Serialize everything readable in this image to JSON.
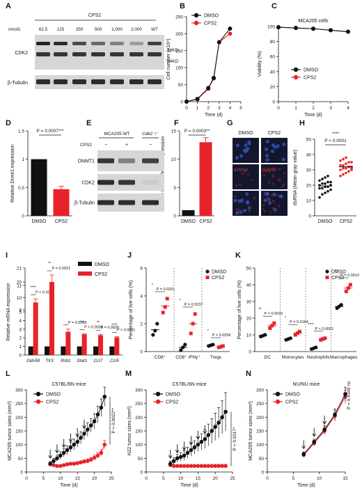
{
  "colors": {
    "dmso": "#111111",
    "cps2": "#e8222a",
    "blot_bg": "#d6d6d6",
    "band": "#1a1a1a",
    "micro_bg": "#12172e",
    "nuclei": "#3550b0",
    "dsrna": "#7a1a20"
  },
  "panel_letters": [
    "A",
    "B",
    "C",
    "D",
    "E",
    "F",
    "G",
    "H",
    "I",
    "J",
    "K",
    "L",
    "M",
    "N"
  ],
  "blotA": {
    "compound": "CPS2",
    "unit": "nmol/L",
    "lanes": [
      "62.5",
      "125",
      "250",
      "500",
      "1,000",
      "2,000",
      "WT"
    ],
    "row_labels": [
      "CDK2",
      "β-Tubulin"
    ],
    "sizes": [
      "38KD",
      "34KD"
    ]
  },
  "blotE": {
    "col_labels": [
      "MCA205 WT",
      "Cdk2⁻/⁻"
    ],
    "treat_label": "CPS2",
    "treat": [
      "−",
      "+",
      "−"
    ],
    "row_labels": [
      "DNMT1",
      "CDK2",
      "β-Tubulin"
    ]
  },
  "micro": {
    "col_labels": [
      "DMSO",
      "CPS2"
    ],
    "stain_label": "dsRNA"
  },
  "legend": {
    "dmso": "DMSO",
    "cps2": "CPS2"
  },
  "chart_data": [
    {
      "id": "B",
      "type": "line",
      "xlabel": "Time (d)",
      "ylabel": "Cell number (×10⁴)",
      "xlim": [
        0,
        5
      ],
      "ylim": [
        0,
        250
      ],
      "xticks": [
        0,
        1,
        2,
        3,
        4,
        5
      ],
      "yticks": [
        0,
        50,
        100,
        150,
        200,
        250
      ],
      "series": [
        {
          "name": "DMSO",
          "x": [
            0,
            1,
            2,
            2.5,
            3,
            4
          ],
          "values": [
            0,
            8,
            40,
            70,
            175,
            215
          ]
        },
        {
          "name": "CPS2",
          "x": [
            0,
            1,
            2,
            2.5,
            3,
            4
          ],
          "values": [
            0,
            7,
            38,
            68,
            175,
            200
          ]
        }
      ],
      "legend_position": "top-left"
    },
    {
      "id": "C",
      "type": "line",
      "title": "MCA205 cells",
      "xlabel": "Time (d)",
      "ylabel": "Viability (%)",
      "xlim": [
        0,
        4
      ],
      "ylim": [
        0,
        100
      ],
      "xticks": [
        0,
        1,
        2,
        3,
        4
      ],
      "yticks": [
        0,
        20,
        40,
        60,
        80,
        100
      ],
      "series": [
        {
          "name": "DMSO",
          "x": [
            0,
            1,
            2,
            3,
            4
          ],
          "values": [
            99,
            98,
            97,
            95,
            93
          ]
        },
        {
          "name": "CPS2",
          "x": [
            0,
            1,
            2,
            3,
            4
          ],
          "values": [
            99,
            98,
            97,
            95,
            93
          ]
        }
      ],
      "legend_position": "bottom-left"
    },
    {
      "id": "D",
      "type": "bar",
      "categories": [
        "DMSO",
        "CPS2"
      ],
      "values": [
        1.0,
        0.47
      ],
      "errors": [
        0,
        0.05
      ],
      "ylabel": "Relative Dnmt1 expression",
      "ylim": [
        0,
        1.5
      ],
      "yticks": [
        0,
        0.5,
        1.0,
        1.5
      ],
      "annotation": "P = 0.0007***"
    },
    {
      "id": "F",
      "type": "bar",
      "categories": [
        "DMSO",
        "CPS2"
      ],
      "values": [
        1,
        13
      ],
      "errors": [
        0,
        0.8
      ],
      "ylabel": "Relative MMERVK10C expression",
      "ylim": [
        0,
        15
      ],
      "yticks": [
        0,
        5,
        10,
        15
      ],
      "annotation": "P = 0.0003**"
    },
    {
      "id": "H",
      "type": "scatter",
      "categories": [
        "DMSO",
        "CPS2"
      ],
      "ylabel": "dsRNA (Mean gray value)",
      "ylim": [
        0,
        50
      ],
      "yticks": [
        0,
        10,
        20,
        30,
        40,
        50
      ],
      "annotation": [
        "****",
        "P < 0.0001"
      ],
      "series": [
        {
          "name": "DMSO",
          "values": [
            12,
            14,
            15,
            16,
            17,
            18,
            18,
            19,
            19,
            20,
            20,
            21,
            21,
            22,
            22,
            23,
            24,
            25,
            26,
            20
          ],
          "mean": 19.5
        },
        {
          "name": "CPS2",
          "values": [
            26,
            27,
            28,
            29,
            30,
            30,
            31,
            31,
            32,
            32,
            33,
            33,
            34,
            35,
            35,
            36,
            37,
            38,
            32,
            31
          ],
          "mean": 32
        }
      ]
    },
    {
      "id": "I",
      "type": "bar",
      "categories": [
        "Ddx58",
        "Tlr3",
        "Ifnb1",
        "Stat1",
        "Ccl7",
        "Ccl5"
      ],
      "ylabel": "Relative mRNA expression",
      "yticks_lower": [
        0,
        1,
        2,
        3,
        4,
        5
      ],
      "yticks_upper": [
        9,
        10,
        11,
        20,
        21
      ],
      "series": [
        {
          "name": "DMSO",
          "values": [
            1,
            1,
            1,
            1,
            1,
            1
          ]
        },
        {
          "name": "CPS2",
          "values": [
            9.6,
            20,
            2.7,
            2.4,
            2.3,
            2.05
          ]
        }
      ],
      "errors": [
        0.3,
        0.5,
        0.3,
        0.05,
        0.1,
        0.08
      ],
      "annotations": [
        [
          "****",
          "P = 0.0001"
        ],
        [
          "**",
          "P = 0.0021"
        ],
        [
          "",
          "P = 0.0368"
        ],
        [
          "***",
          "P = 0.0003"
        ],
        [
          "**",
          "P = 0.0026"
        ],
        [
          "****",
          "P < 0.0001"
        ]
      ],
      "legend_position": "top-right"
    },
    {
      "id": "J",
      "type": "scatter",
      "categories": [
        "CD8⁺",
        "CD8⁺ IFNγ⁺",
        "Tregs"
      ],
      "ylabel": "Percentage of live cells (%)",
      "ylim": [
        0,
        6
      ],
      "yticks": [
        0,
        2,
        4,
        6
      ],
      "series": [
        {
          "name": "DMSO",
          "values": [
            [
              1.2,
              1.5,
              2.0
            ],
            [
              0.1,
              0.3,
              0.5
            ],
            [
              0.4,
              0.45,
              0.5
            ]
          ]
        },
        {
          "name": "CPS2",
          "values": [
            [
              2.8,
              3.2,
              3.8
            ],
            [
              1.3,
              2.0,
              2.7
            ],
            [
              0.3,
              0.35,
              0.4
            ]
          ]
        }
      ],
      "annotations": [
        [
          "*",
          "P = 0.0261"
        ],
        [
          "*",
          "P = 0.0237"
        ],
        [
          "*",
          "P = 0.0256"
        ]
      ],
      "legend_position": "top-right"
    },
    {
      "id": "K",
      "type": "scatter",
      "categories": [
        "DC",
        "Monocytes",
        "Neutrophils",
        "Macrophages"
      ],
      "ylabel": "Percentage of live cells (%)",
      "ylim": [
        0,
        50
      ],
      "yticks": [
        0,
        10,
        20,
        30,
        40,
        50
      ],
      "series": [
        {
          "name": "DMSO",
          "values": [
            [
              9,
              9.5,
              10
            ],
            [
              7,
              7.5,
              8
            ],
            [
              1.5,
              2,
              2.5
            ],
            [
              26,
              27,
              28
            ]
          ]
        },
        {
          "name": "CPS2",
          "values": [
            [
              14,
              15.5,
              17
            ],
            [
              10,
              11,
              12
            ],
            [
              7,
              7.5,
              8
            ],
            [
              36,
              38,
              40
            ]
          ]
        }
      ],
      "annotations": [
        [
          "**",
          "P = 0.0016"
        ],
        [
          "*",
          "P = 0.0184"
        ],
        [
          "****",
          "P < 0.0001"
        ],
        [
          "**",
          "P = 0.0013"
        ]
      ],
      "legend_position": "top-right"
    },
    {
      "id": "L",
      "type": "line",
      "title": "C57BL/6N mice",
      "xlabel": "Time (d)",
      "ylabel": "MCA205 tumor sizes (mm³)",
      "xlim": [
        0,
        25
      ],
      "ylim": [
        0,
        300
      ],
      "xticks": [
        0,
        5,
        10,
        15,
        20,
        25
      ],
      "yticks": [
        0,
        50,
        100,
        150,
        200,
        250,
        300
      ],
      "series": [
        {
          "name": "DMSO",
          "x": [
            7,
            8,
            9,
            10,
            11,
            12,
            13,
            14,
            15,
            16,
            17,
            18,
            19,
            20,
            21,
            22,
            23
          ],
          "values": [
            30,
            40,
            50,
            60,
            70,
            80,
            90,
            100,
            110,
            125,
            140,
            155,
            170,
            185,
            210,
            235,
            275
          ],
          "error": [
            8,
            10,
            12,
            14,
            15,
            16,
            18,
            20,
            20,
            22,
            22,
            25,
            25,
            28,
            30,
            32,
            35
          ]
        },
        {
          "name": "CPS2",
          "x": [
            7,
            8,
            9,
            10,
            11,
            12,
            13,
            14,
            15,
            16,
            17,
            18,
            19,
            20,
            21,
            22,
            23
          ],
          "values": [
            28,
            25,
            22,
            22,
            25,
            28,
            30,
            30,
            32,
            35,
            38,
            40,
            45,
            52,
            60,
            70,
            100
          ],
          "error": [
            5,
            4,
            4,
            4,
            5,
            5,
            5,
            6,
            6,
            6,
            7,
            8,
            8,
            10,
            10,
            12,
            15
          ]
        }
      ],
      "arrows_at": [
        7,
        9,
        11,
        13,
        15,
        17
      ],
      "pvalue": "P = 0.0022**",
      "legend_position": "top-left"
    },
    {
      "id": "M",
      "type": "line",
      "title": "C57BL/6N mice",
      "xlabel": "Time (d)",
      "ylabel": "H22 tumor sizes (mm³)",
      "xlim": [
        0,
        25
      ],
      "ylim": [
        0,
        300
      ],
      "xticks": [
        0,
        5,
        10,
        15,
        20,
        25
      ],
      "yticks": [
        0,
        50,
        100,
        150,
        200,
        250,
        300
      ],
      "series": [
        {
          "name": "DMSO",
          "x": [
            7,
            8,
            9,
            10,
            11,
            12,
            13,
            14,
            15,
            16,
            17,
            18,
            19,
            20,
            21,
            22,
            23
          ],
          "values": [
            30,
            40,
            50,
            55,
            60,
            70,
            80,
            90,
            100,
            110,
            120,
            135,
            150,
            165,
            180,
            200,
            220
          ],
          "error": [
            10,
            12,
            14,
            16,
            18,
            20,
            22,
            24,
            26,
            30,
            35,
            40,
            45,
            50,
            55,
            60,
            70
          ]
        },
        {
          "name": "CPS2",
          "x": [
            7,
            8,
            9,
            10,
            11,
            12,
            13,
            14,
            15,
            16,
            17,
            18,
            19,
            20,
            21,
            22,
            23
          ],
          "values": [
            25,
            22,
            22,
            22,
            22,
            22,
            22,
            22,
            22,
            22,
            22,
            22,
            22,
            22,
            22,
            22,
            22
          ],
          "error": [
            4,
            4,
            4,
            4,
            4,
            4,
            4,
            4,
            4,
            5,
            5,
            5,
            5,
            6,
            6,
            6,
            6
          ]
        }
      ],
      "arrows_at": [
        7,
        9,
        11,
        13,
        15,
        17
      ],
      "pvalue": "P = 0.0317*",
      "legend_position": "top-left"
    },
    {
      "id": "N",
      "type": "line",
      "title": "NU/NU mice",
      "xlabel": "Time (d)",
      "ylabel": "MCA205 tumor sizes (mm³)",
      "xlim": [
        0,
        15
      ],
      "ylim": [
        0,
        300
      ],
      "xticks": [
        0,
        5,
        10,
        15
      ],
      "yticks": [
        0,
        50,
        100,
        150,
        200,
        250,
        300
      ],
      "series": [
        {
          "name": "DMSO",
          "x": [
            7,
            9,
            11,
            13,
            15
          ],
          "values": [
            65,
            110,
            155,
            210,
            285
          ],
          "error": [
            8,
            10,
            15,
            20,
            25
          ]
        },
        {
          "name": "CPS2",
          "x": [
            7,
            9,
            11,
            13,
            15
          ],
          "values": [
            62,
            105,
            150,
            205,
            275
          ],
          "error": [
            8,
            10,
            15,
            20,
            25
          ]
        }
      ],
      "arrows_at": [
        7,
        9,
        11
      ],
      "pvalue": "P = 0.4349 ns",
      "legend_position": "top-left"
    }
  ]
}
